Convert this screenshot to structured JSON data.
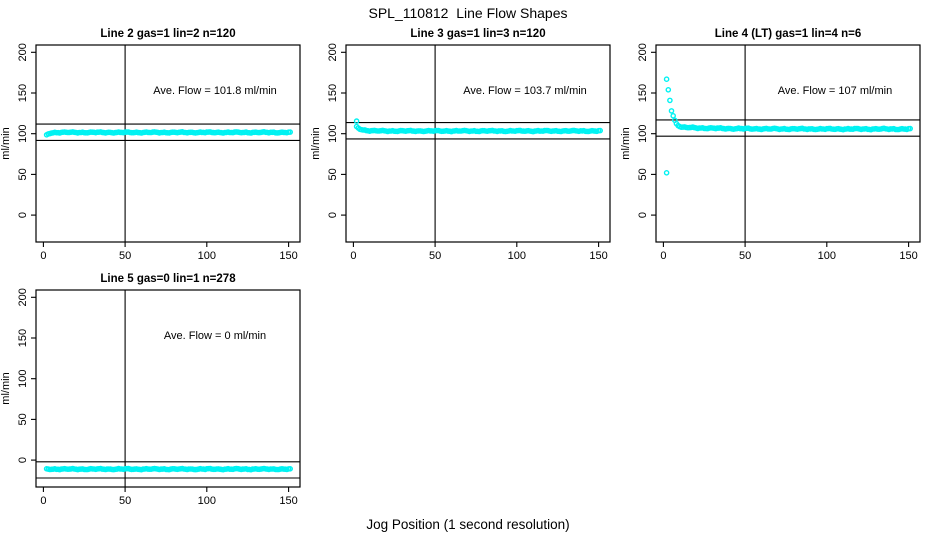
{
  "chart_data": {
    "type": "scatter",
    "title": "SPL_110812  Line Flow Shapes",
    "xlabel": "Jog Position (1 second resolution)",
    "ylabel": "ml/min",
    "x_ticks": [
      0,
      50,
      100,
      150
    ],
    "y_ticks": [
      0,
      50,
      100,
      150,
      200
    ],
    "xlim": [
      -4.5,
      157
    ],
    "ylim": [
      -33,
      209
    ],
    "grid": false,
    "legend": "none",
    "marker": "open-circle",
    "marker_color": "#00F2F2",
    "annotation_pos": [
      105,
      149
    ],
    "panels": [
      {
        "id": "line2",
        "grid": {
          "row": 0,
          "col": 0
        },
        "title": "Line 2 gas=1 lin=2 n=120",
        "annotation": "Ave. Flow =  101.8  ml/min",
        "ave_flow": 101.8,
        "gas": 1,
        "lin": 2,
        "n": 120,
        "vline_x": 50,
        "hlines": [
          111.8,
          91.8
        ],
        "series": {
          "x_start": 2,
          "x_end": 151,
          "step": 1,
          "start_value": 98.3,
          "steady_value": 101.6,
          "tau": 1.6,
          "jitter": 0.8
        },
        "lead_points": [],
        "outliers": []
      },
      {
        "id": "line3",
        "grid": {
          "row": 0,
          "col": 1
        },
        "title": "Line 3 gas=1 lin=3 n=120",
        "annotation": "Ave. Flow =  103.7  ml/min",
        "ave_flow": 103.7,
        "gas": 1,
        "lin": 3,
        "n": 120,
        "vline_x": 50,
        "hlines": [
          113.7,
          93.7
        ],
        "series": {
          "x_start": 2,
          "x_end": 151,
          "step": 1,
          "start_value": 108.5,
          "steady_value": 103.4,
          "tau": 3,
          "jitter": 0.8
        },
        "lead_points": [],
        "outliers": [
          [
            2,
            115.5
          ]
        ]
      },
      {
        "id": "line4",
        "grid": {
          "row": 0,
          "col": 2
        },
        "title": "Line 4 (LT) gas=1 lin=4 n=6",
        "annotation": "Ave. Flow =  107  ml/min",
        "ave_flow": 107,
        "gas": 1,
        "lin": 4,
        "n": 6,
        "vline_x": 50,
        "hlines": [
          117,
          97
        ],
        "series": {
          "x_start": 11,
          "x_end": 151,
          "step": 1,
          "start_value": 108,
          "steady_value": 105.8,
          "tau": 22,
          "jitter": 0.9
        },
        "lead_points": [
          [
            2,
            167
          ],
          [
            3,
            154
          ],
          [
            4,
            141
          ],
          [
            5,
            128
          ],
          [
            6,
            122
          ],
          [
            7,
            116.5
          ],
          [
            8,
            112.5
          ],
          [
            9,
            110
          ],
          [
            10,
            108.8
          ]
        ],
        "outliers": [
          [
            2,
            52
          ]
        ]
      },
      {
        "id": "line5",
        "grid": {
          "row": 1,
          "col": 0
        },
        "title": "Line 5 gas=0 lin=1 n=278",
        "annotation": "Ave. Flow =  0  ml/min",
        "ave_flow": 0,
        "gas": 0,
        "lin": 1,
        "n": 278,
        "vline_x": 50,
        "hlines": [
          -2,
          -22
        ],
        "series": {
          "x_start": 2,
          "x_end": 151,
          "step": 1,
          "start_value": -11,
          "steady_value": -11,
          "tau": 1,
          "jitter": 0.8
        },
        "lead_points": [],
        "outliers": []
      }
    ]
  }
}
